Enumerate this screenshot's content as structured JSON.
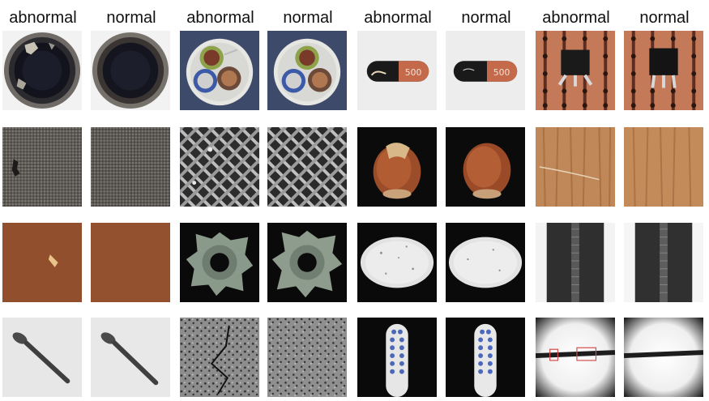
{
  "headers": [
    {
      "label": "abnormal"
    },
    {
      "label": "normal"
    },
    {
      "label": "abnormal"
    },
    {
      "label": "normal"
    },
    {
      "label": "abnormal"
    },
    {
      "label": "normal"
    },
    {
      "label": "abnormal"
    },
    {
      "label": "normal"
    }
  ],
  "pill_text": "500",
  "rows": [
    [
      "bottle",
      "bottle",
      "cable",
      "cable",
      "capsule",
      "capsule",
      "transistor",
      "transistor"
    ],
    [
      "carpet",
      "carpet",
      "grid",
      "grid",
      "hazelnut",
      "hazelnut",
      "wood",
      "wood"
    ],
    [
      "leather",
      "leather",
      "metal-nut",
      "metal-nut",
      "pill",
      "pill",
      "zipper",
      "zipper"
    ],
    [
      "screw",
      "screw",
      "tile",
      "tile",
      "toothbrush",
      "toothbrush",
      "wire",
      "wire"
    ]
  ]
}
